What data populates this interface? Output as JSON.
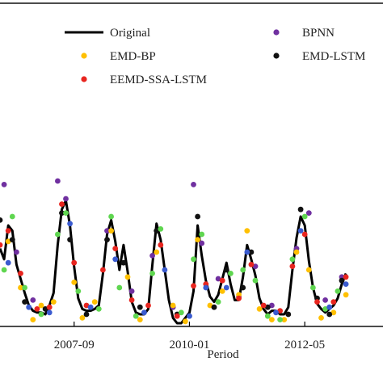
{
  "chart_data": {
    "type": "line",
    "title": "",
    "xlabel": "Period",
    "ylabel": "",
    "x_ticks": [
      "2007-09",
      "2010-01",
      "2012-05"
    ],
    "x_range": [
      "2006-03",
      "2013-12"
    ],
    "y_range": [
      0,
      1
    ],
    "grid": false,
    "legend_position": "top",
    "series": [
      {
        "name": "Original",
        "style": "line",
        "color": "#000000",
        "points": [
          [
            "2006-03",
            0.42
          ],
          [
            "2006-04",
            0.36
          ],
          [
            "2006-05",
            0.55
          ],
          [
            "2006-06",
            0.52
          ],
          [
            "2006-07",
            0.33
          ],
          [
            "2006-08",
            0.25
          ],
          [
            "2006-09",
            0.17
          ],
          [
            "2006-10",
            0.1
          ],
          [
            "2006-11",
            0.07
          ],
          [
            "2006-12",
            0.06
          ],
          [
            "2007-01",
            0.06
          ],
          [
            "2007-02",
            0.05
          ],
          [
            "2007-03",
            0.1
          ],
          [
            "2007-04",
            0.17
          ],
          [
            "2007-05",
            0.44
          ],
          [
            "2007-06",
            0.64
          ],
          [
            "2007-07",
            0.69
          ],
          [
            "2007-08",
            0.55
          ],
          [
            "2007-09",
            0.32
          ],
          [
            "2007-10",
            0.14
          ],
          [
            "2007-11",
            0.08
          ],
          [
            "2007-12",
            0.07
          ],
          [
            "2008-01",
            0.07
          ],
          [
            "2008-02",
            0.08
          ],
          [
            "2008-03",
            0.1
          ],
          [
            "2008-04",
            0.28
          ],
          [
            "2008-05",
            0.5
          ],
          [
            "2008-06",
            0.58
          ],
          [
            "2008-07",
            0.46
          ],
          [
            "2008-08",
            0.3
          ],
          [
            "2008-09",
            0.44
          ],
          [
            "2008-10",
            0.29
          ],
          [
            "2008-11",
            0.12
          ],
          [
            "2008-12",
            0.06
          ],
          [
            "2009-01",
            0.05
          ],
          [
            "2009-02",
            0.05
          ],
          [
            "2009-03",
            0.08
          ],
          [
            "2009-04",
            0.33
          ],
          [
            "2009-05",
            0.56
          ],
          [
            "2009-06",
            0.47
          ],
          [
            "2009-07",
            0.3
          ],
          [
            "2009-08",
            0.13
          ],
          [
            "2009-09",
            0.03
          ],
          [
            "2009-10",
            0.0
          ],
          [
            "2009-11",
            0.0
          ],
          [
            "2009-12",
            0.03
          ],
          [
            "2010-01",
            0.06
          ],
          [
            "2010-02",
            0.18
          ],
          [
            "2010-03",
            0.55
          ],
          [
            "2010-04",
            0.38
          ],
          [
            "2010-05",
            0.24
          ],
          [
            "2010-06",
            0.15
          ],
          [
            "2010-07",
            0.12
          ],
          [
            "2010-08",
            0.16
          ],
          [
            "2010-09",
            0.25
          ],
          [
            "2010-10",
            0.34
          ],
          [
            "2010-11",
            0.22
          ],
          [
            "2010-12",
            0.13
          ],
          [
            "2011-01",
            0.13
          ],
          [
            "2011-02",
            0.26
          ],
          [
            "2011-03",
            0.44
          ],
          [
            "2011-04",
            0.36
          ],
          [
            "2011-05",
            0.27
          ],
          [
            "2011-06",
            0.14
          ],
          [
            "2011-07",
            0.08
          ],
          [
            "2011-08",
            0.05
          ],
          [
            "2011-09",
            0.07
          ],
          [
            "2011-10",
            0.07
          ],
          [
            "2011-11",
            0.05
          ],
          [
            "2011-12",
            0.05
          ],
          [
            "2012-01",
            0.09
          ],
          [
            "2012-02",
            0.3
          ],
          [
            "2012-03",
            0.48
          ],
          [
            "2012-04",
            0.6
          ],
          [
            "2012-05",
            0.55
          ],
          [
            "2012-06",
            0.35
          ],
          [
            "2012-07",
            0.2
          ],
          [
            "2012-08",
            0.11
          ],
          [
            "2012-09",
            0.08
          ],
          [
            "2012-10",
            0.06
          ],
          [
            "2012-11",
            0.08
          ],
          [
            "2012-12",
            0.1
          ],
          [
            "2013-01",
            0.14
          ],
          [
            "2013-02",
            0.22
          ],
          [
            "2013-03",
            0.28
          ]
        ]
      },
      {
        "name": "BPNN",
        "style": "points",
        "color": "#7030a0",
        "points": [
          [
            "2006-04",
            0.78
          ],
          [
            "2006-07",
            0.4
          ],
          [
            "2006-11",
            0.13
          ],
          [
            "2007-05",
            0.8
          ],
          [
            "2007-07",
            0.7
          ],
          [
            "2008-05",
            0.52
          ],
          [
            "2008-11",
            0.18
          ],
          [
            "2009-04",
            0.38
          ],
          [
            "2009-09",
            0.09
          ],
          [
            "2010-02",
            0.78
          ],
          [
            "2010-04",
            0.45
          ],
          [
            "2010-08",
            0.25
          ],
          [
            "2011-01",
            0.15
          ],
          [
            "2011-05",
            0.32
          ],
          [
            "2011-09",
            0.1
          ],
          [
            "2012-03",
            0.42
          ],
          [
            "2012-06",
            0.62
          ],
          [
            "2012-10",
            0.13
          ],
          [
            "2013-02",
            0.26
          ]
        ]
      },
      {
        "name": "EMD-BP",
        "style": "points",
        "color": "#ffc000",
        "points": [
          [
            "2006-05",
            0.46
          ],
          [
            "2006-08",
            0.2
          ],
          [
            "2006-11",
            0.02
          ],
          [
            "2007-01",
            0.1
          ],
          [
            "2007-04",
            0.12
          ],
          [
            "2007-09",
            0.23
          ],
          [
            "2007-11",
            0.03
          ],
          [
            "2008-02",
            0.12
          ],
          [
            "2008-06",
            0.52
          ],
          [
            "2008-10",
            0.26
          ],
          [
            "2009-01",
            0.02
          ],
          [
            "2009-05",
            0.4
          ],
          [
            "2009-09",
            0.1
          ],
          [
            "2009-12",
            0.01
          ],
          [
            "2010-03",
            0.47
          ],
          [
            "2010-06",
            0.1
          ],
          [
            "2010-09",
            0.18
          ],
          [
            "2011-01",
            0.16
          ],
          [
            "2011-03",
            0.52
          ],
          [
            "2011-06",
            0.08
          ],
          [
            "2011-09",
            0.02
          ],
          [
            "2011-12",
            0.02
          ],
          [
            "2012-03",
            0.4
          ],
          [
            "2012-06",
            0.3
          ],
          [
            "2012-09",
            0.03
          ],
          [
            "2012-12",
            0.06
          ],
          [
            "2013-03",
            0.16
          ]
        ]
      },
      {
        "name": "EMD-LSTM",
        "style": "points",
        "color": "#111111",
        "points": [
          [
            "2006-03",
            0.58
          ],
          [
            "2006-06",
            0.47
          ],
          [
            "2006-09",
            0.12
          ],
          [
            "2007-02",
            0.08
          ],
          [
            "2007-06",
            0.62
          ],
          [
            "2007-08",
            0.47
          ],
          [
            "2007-12",
            0.05
          ],
          [
            "2008-05",
            0.47
          ],
          [
            "2008-09",
            0.34
          ],
          [
            "2009-01",
            0.09
          ],
          [
            "2009-05",
            0.52
          ],
          [
            "2009-10",
            0.05
          ],
          [
            "2010-03",
            0.6
          ],
          [
            "2010-07",
            0.09
          ],
          [
            "2010-10",
            0.3
          ],
          [
            "2011-02",
            0.2
          ],
          [
            "2011-04",
            0.4
          ],
          [
            "2011-08",
            0.09
          ],
          [
            "2012-01",
            0.05
          ],
          [
            "2012-04",
            0.64
          ],
          [
            "2012-08",
            0.14
          ],
          [
            "2012-11",
            0.05
          ],
          [
            "2013-02",
            0.24
          ]
        ]
      },
      {
        "name": "EEMD-SSA-LSTM",
        "style": "points",
        "color": "#e8251f",
        "points": [
          [
            "2006-03",
            0.44
          ],
          [
            "2006-05",
            0.52
          ],
          [
            "2006-08",
            0.28
          ],
          [
            "2006-12",
            0.08
          ],
          [
            "2007-03",
            0.09
          ],
          [
            "2007-06",
            0.67
          ],
          [
            "2007-09",
            0.34
          ],
          [
            "2007-12",
            0.1
          ],
          [
            "2008-04",
            0.3
          ],
          [
            "2008-07",
            0.42
          ],
          [
            "2008-11",
            0.13
          ],
          [
            "2009-03",
            0.1
          ],
          [
            "2009-06",
            0.44
          ],
          [
            "2009-10",
            0.04
          ],
          [
            "2010-02",
            0.21
          ],
          [
            "2010-05",
            0.22
          ],
          [
            "2010-09",
            0.24
          ],
          [
            "2011-01",
            0.14
          ],
          [
            "2011-04",
            0.33
          ],
          [
            "2011-07",
            0.1
          ],
          [
            "2011-11",
            0.07
          ],
          [
            "2012-02",
            0.32
          ],
          [
            "2012-05",
            0.5
          ],
          [
            "2012-08",
            0.12
          ],
          [
            "2012-12",
            0.12
          ],
          [
            "2013-03",
            0.26
          ]
        ]
      },
      {
        "name": "",
        "style": "points",
        "color": "#5fd650",
        "points": [
          [
            "2006-04",
            0.3
          ],
          [
            "2006-06",
            0.6
          ],
          [
            "2006-09",
            0.2
          ],
          [
            "2007-01",
            0.05
          ],
          [
            "2007-05",
            0.5
          ],
          [
            "2007-07",
            0.62
          ],
          [
            "2007-10",
            0.18
          ],
          [
            "2008-03",
            0.08
          ],
          [
            "2008-06",
            0.6
          ],
          [
            "2008-08",
            0.2
          ],
          [
            "2008-12",
            0.04
          ],
          [
            "2009-04",
            0.28
          ],
          [
            "2009-06",
            0.53
          ],
          [
            "2009-11",
            0.06
          ],
          [
            "2010-02",
            0.36
          ],
          [
            "2010-04",
            0.5
          ],
          [
            "2010-08",
            0.12
          ],
          [
            "2010-11",
            0.28
          ],
          [
            "2011-02",
            0.3
          ],
          [
            "2011-05",
            0.24
          ],
          [
            "2011-08",
            0.04
          ],
          [
            "2011-11",
            0.02
          ],
          [
            "2012-02",
            0.36
          ],
          [
            "2012-05",
            0.6
          ],
          [
            "2012-07",
            0.2
          ],
          [
            "2012-10",
            0.08
          ],
          [
            "2013-01",
            0.18
          ]
        ]
      },
      {
        "name": "",
        "style": "points",
        "color": "#3a5bd0",
        "points": [
          [
            "2006-05",
            0.34
          ],
          [
            "2006-10",
            0.09
          ],
          [
            "2007-03",
            0.06
          ],
          [
            "2007-08",
            0.56
          ],
          [
            "2008-01",
            0.09
          ],
          [
            "2008-07",
            0.36
          ],
          [
            "2009-02",
            0.06
          ],
          [
            "2009-07",
            0.3
          ],
          [
            "2010-01",
            0.04
          ],
          [
            "2010-05",
            0.2
          ],
          [
            "2010-10",
            0.2
          ],
          [
            "2011-03",
            0.4
          ],
          [
            "2011-10",
            0.06
          ],
          [
            "2012-04",
            0.52
          ],
          [
            "2012-11",
            0.09
          ],
          [
            "2013-03",
            0.22
          ]
        ]
      }
    ]
  }
}
